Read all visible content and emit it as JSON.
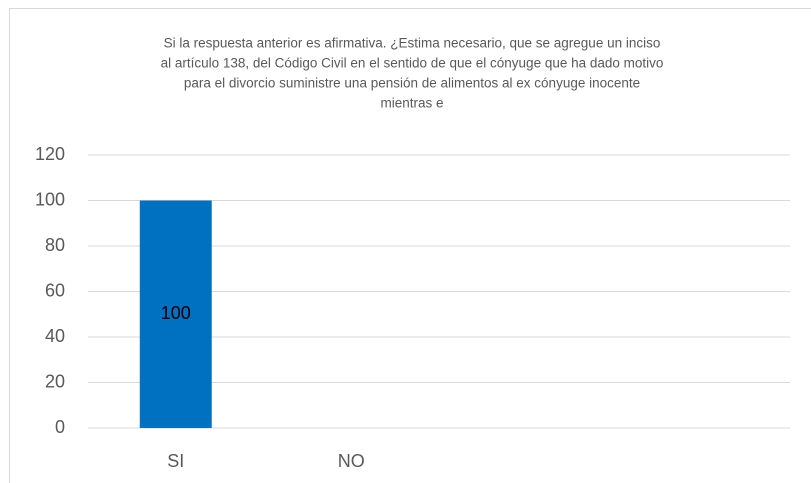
{
  "chart_data": {
    "type": "bar",
    "title": [
      "Si la respuesta anterior es afirmativa. ¿Estima necesario, que se agregue un inciso",
      "al artículo 138, del Código Civil en el sentido de que el cónyuge que ha dado motivo",
      "para el divorcio suministre una pensión de alimentos al ex cónyuge inocente",
      "mientras e"
    ],
    "categories": [
      "SI",
      "NO",
      null,
      null
    ],
    "values": [
      100,
      null,
      null,
      null
    ],
    "color": "#0070c0",
    "ylim": [
      0,
      120
    ],
    "yticks": [
      0,
      20,
      40,
      60,
      80,
      100,
      120
    ],
    "grid": true
  }
}
